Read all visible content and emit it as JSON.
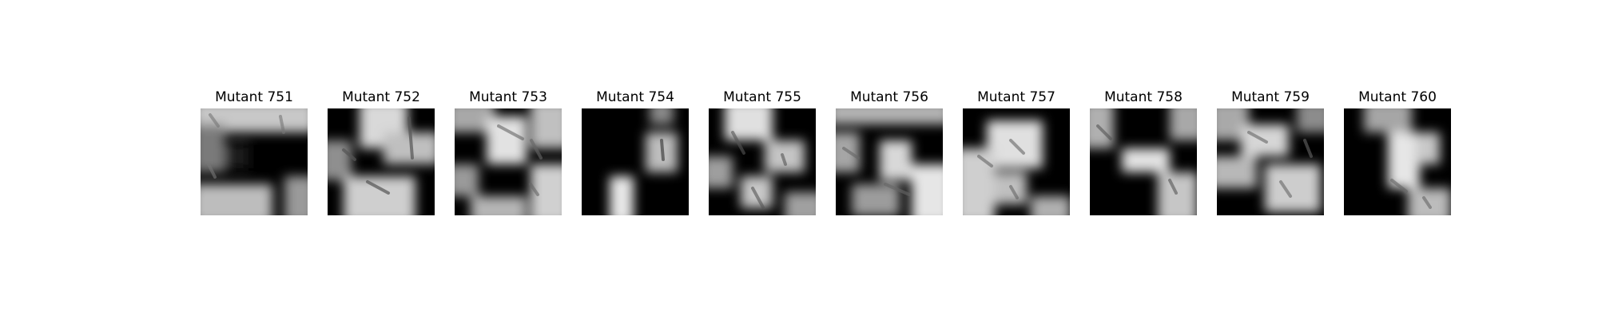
{
  "panels": [
    {
      "title": "Mutant 751",
      "image": "grayscale-mutant-751"
    },
    {
      "title": "Mutant 752",
      "image": "grayscale-mutant-752"
    },
    {
      "title": "Mutant 753",
      "image": "grayscale-mutant-753"
    },
    {
      "title": "Mutant 754",
      "image": "grayscale-mutant-754"
    },
    {
      "title": "Mutant 755",
      "image": "grayscale-mutant-755"
    },
    {
      "title": "Mutant 756",
      "image": "grayscale-mutant-756"
    },
    {
      "title": "Mutant 757",
      "image": "grayscale-mutant-757"
    },
    {
      "title": "Mutant 758",
      "image": "grayscale-mutant-758"
    },
    {
      "title": "Mutant 759",
      "image": "grayscale-mutant-759"
    },
    {
      "title": "Mutant 760",
      "image": "grayscale-mutant-760"
    }
  ]
}
